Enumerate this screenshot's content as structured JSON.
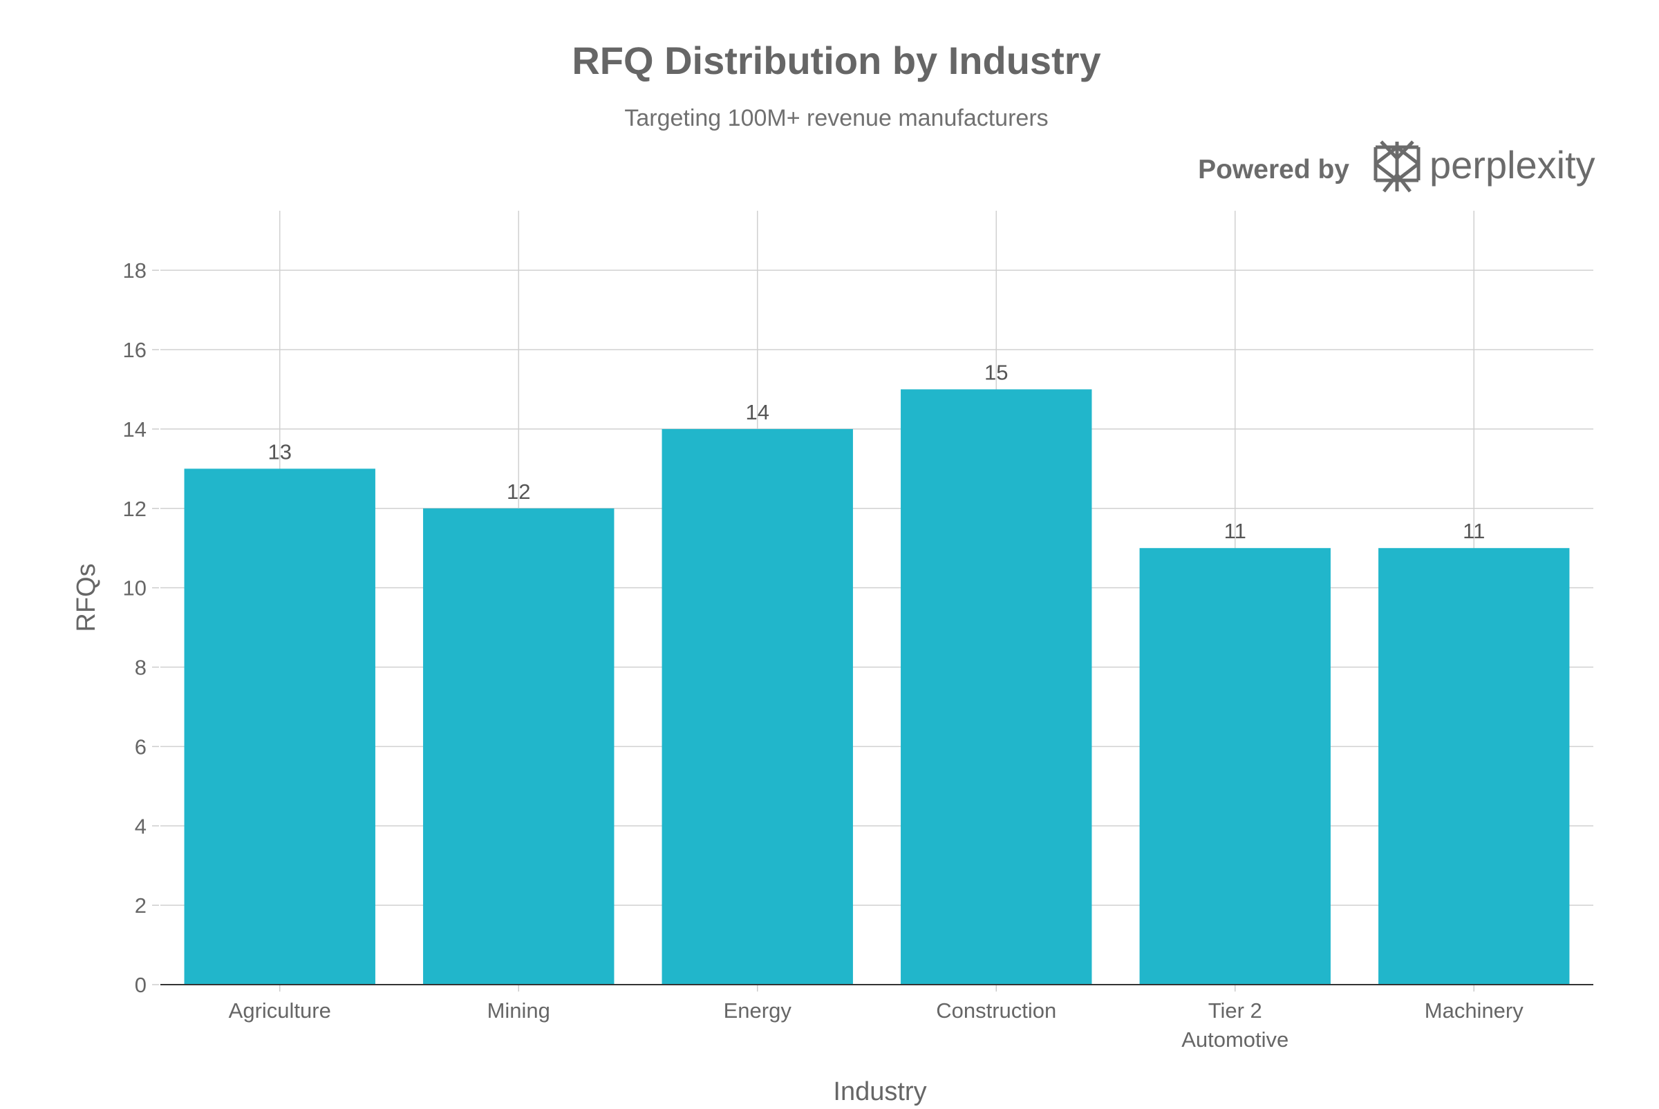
{
  "branding": {
    "powered_by": "Powered by",
    "name": "perplexity",
    "color": "#6b6b6b"
  },
  "chart_data": {
    "type": "bar",
    "title": "RFQ Distribution by Industry",
    "subtitle": "Targeting 100M+ revenue manufacturers",
    "xlabel": "Industry",
    "ylabel": "RFQs",
    "categories": [
      [
        "Agriculture"
      ],
      [
        "Mining"
      ],
      [
        "Energy"
      ],
      [
        "Construction"
      ],
      [
        "Tier 2",
        "Automotive"
      ],
      [
        "Machinery"
      ]
    ],
    "values": [
      13,
      12,
      14,
      15,
      11,
      11
    ],
    "data_labels": [
      "13",
      "12",
      "14",
      "15",
      "11",
      "11"
    ],
    "ylim": [
      0,
      19.5
    ],
    "yticks": [
      0,
      2,
      4,
      6,
      8,
      10,
      12,
      14,
      16,
      18
    ],
    "grid": true,
    "bar_color": "#21b6cb",
    "legend": "none"
  }
}
